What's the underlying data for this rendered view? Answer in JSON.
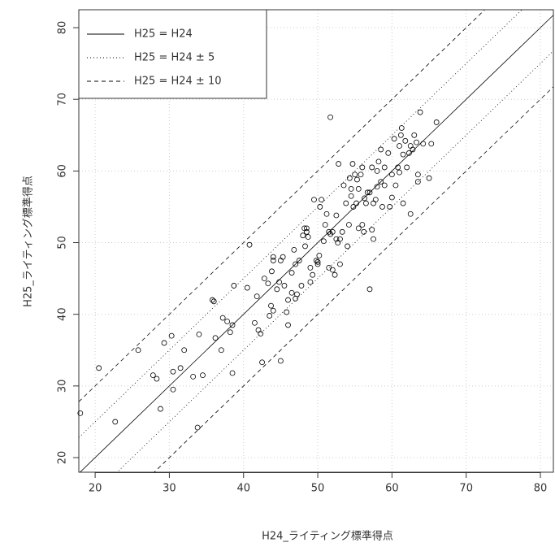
{
  "chart_data": {
    "type": "scatter",
    "xlabel": "H24_ライティング標準得点",
    "ylabel": "H25_ライティング標準得点",
    "xlim": [
      17.8,
      81.75
    ],
    "ylim": [
      17.96,
      82.5
    ],
    "xticks": [
      20,
      30,
      40,
      50,
      60,
      70,
      80
    ],
    "yticks": [
      20,
      30,
      40,
      50,
      60,
      70,
      80
    ],
    "grid": true,
    "legend": "top-left",
    "color": "#000000",
    "reference_lines": [
      {
        "name": "H25 = H24",
        "offset": 0,
        "linestyle": "solid"
      },
      {
        "name": "H25 = H24 ± 5",
        "offset": 5,
        "linestyle": "dotted"
      },
      {
        "name": "H25 = H24 ± 10",
        "offset": 10,
        "linestyle": "dashed"
      }
    ],
    "x": [
      18,
      20.5,
      22.7,
      25.8,
      27.8,
      28.3,
      28.8,
      29.3,
      30.3,
      30.5,
      30.5,
      31.5,
      32,
      33.2,
      33.8,
      34,
      34.5,
      35.8,
      36,
      36.2,
      37,
      37.2,
      37.8,
      38.2,
      38.5,
      38.5,
      38.7,
      40.5,
      40.8,
      41.5,
      41.8,
      42,
      42.3,
      42.5,
      42.8,
      43.3,
      43.5,
      43.7,
      43.8,
      44,
      44,
      44,
      44.5,
      44.8,
      45,
      45,
      45.3,
      45.5,
      45.8,
      46,
      46,
      46.5,
      46.5,
      46.8,
      47,
      47,
      47.2,
      47.5,
      47.8,
      48,
      48.2,
      48.3,
      48.5,
      48.5,
      48.7,
      49,
      49,
      49.3,
      49.5,
      49.8,
      50,
      50,
      50.2,
      50.3,
      50.5,
      50.8,
      51,
      51.2,
      51.5,
      51.5,
      51.7,
      51.7,
      52,
      52,
      52.3,
      52.5,
      52.5,
      52.7,
      52.8,
      53,
      53,
      53.3,
      53.5,
      53.8,
      54,
      54.2,
      54.3,
      54.5,
      54.5,
      54.7,
      54.8,
      55,
      55.2,
      55.3,
      55.5,
      55.5,
      55.8,
      56,
      56,
      56.2,
      56.3,
      56.5,
      56.7,
      57,
      57,
      57.3,
      57.3,
      57.5,
      57.5,
      57.8,
      58,
      58,
      58.2,
      58.5,
      58.5,
      58.7,
      59,
      59,
      59.5,
      59.7,
      60,
      60,
      60.3,
      60.5,
      60.8,
      61,
      61,
      61.2,
      61.3,
      61.5,
      61.5,
      61.8,
      62,
      62.3,
      62.5,
      62.5,
      62.8,
      63,
      63.3,
      63.5,
      63.5,
      63.8,
      64.2,
      65,
      65.3,
      66
    ],
    "values": [
      26.2,
      32.5,
      25,
      35,
      31.5,
      31,
      26.8,
      36,
      37,
      29.5,
      32,
      32.5,
      35,
      31.3,
      24.2,
      37.2,
      31.5,
      42,
      41.8,
      36.7,
      35,
      39.5,
      39,
      37.5,
      38.5,
      31.8,
      44,
      43.7,
      49.7,
      38.8,
      42.5,
      37.8,
      37.3,
      33.3,
      45,
      44.3,
      39.8,
      41.2,
      46,
      47.5,
      48,
      40.5,
      43.5,
      44.5,
      47.5,
      33.5,
      48,
      44,
      40.3,
      42,
      38.5,
      45.8,
      43,
      49,
      42.2,
      47,
      42.8,
      47.5,
      44,
      51,
      52,
      49.5,
      52,
      51.5,
      50.8,
      44.5,
      46.5,
      45.5,
      56,
      47.5,
      47.3,
      47,
      48.2,
      55,
      56,
      50.2,
      52.5,
      54,
      51.5,
      46.5,
      51.2,
      67.5,
      51.5,
      46.2,
      45.5,
      50.5,
      53.8,
      50,
      61,
      47,
      50.5,
      51.5,
      58,
      55.5,
      49.5,
      52.5,
      59,
      56.5,
      57.5,
      61,
      55,
      59.5,
      55.5,
      58.8,
      57.5,
      52,
      59.5,
      60.5,
      52.5,
      51.5,
      56.2,
      55.5,
      57,
      57,
      43.5,
      60.5,
      51.8,
      50.5,
      55.5,
      56,
      60,
      57.8,
      61.3,
      63,
      58.5,
      55,
      60.5,
      58,
      62.5,
      55,
      59.5,
      56.3,
      64.5,
      58,
      60.5,
      63.5,
      59.8,
      65,
      66,
      62.3,
      55.5,
      64.2,
      60.5,
      62.5,
      63.5,
      54,
      63,
      65,
      64,
      59.5,
      58.5,
      68.2,
      63.8,
      59,
      63.8,
      66.8
    ]
  }
}
